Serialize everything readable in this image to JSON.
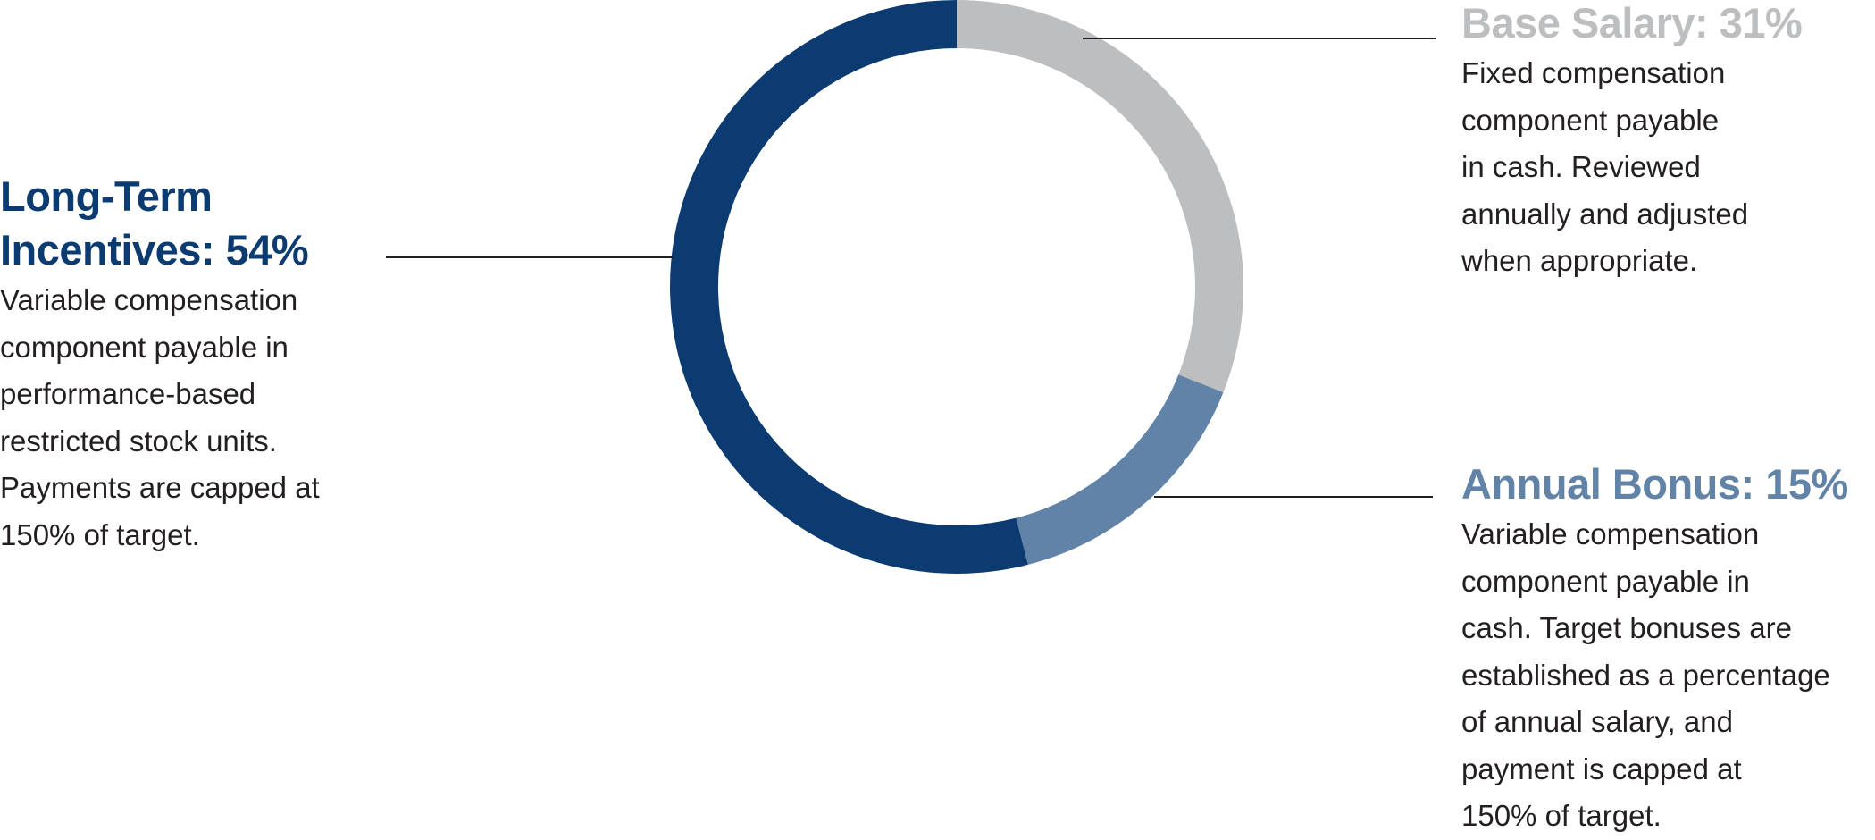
{
  "chart_data": {
    "type": "pie",
    "style": "donut",
    "start": "top",
    "direction": "clockwise",
    "slices": [
      {
        "name": "Base Salary",
        "value": 31,
        "heading": "Base Salary: 31%",
        "color": "#bcbec0",
        "description": [
          "Fixed compensation",
          "component payable",
          "in cash. Reviewed",
          "annually and adjusted",
          "when appropriate."
        ]
      },
      {
        "name": "Annual Bonus",
        "value": 15,
        "heading": "Annual Bonus: 15%",
        "color": "#6283a8",
        "description": [
          "Variable compensation",
          "component payable in",
          "cash. Target bonuses are",
          "established as a percentage",
          "of annual salary, and",
          "payment is capped at",
          "150% of target."
        ]
      },
      {
        "name": "Long-Term Incentives",
        "value": 54,
        "heading": [
          "Long-Term",
          "Incentives: 54%"
        ],
        "color": "#0b3b70",
        "description": [
          "Variable compensation",
          "component payable in",
          "performance-based",
          "restricted stock units.",
          "Payments are capped at",
          "150% of target."
        ]
      }
    ]
  }
}
